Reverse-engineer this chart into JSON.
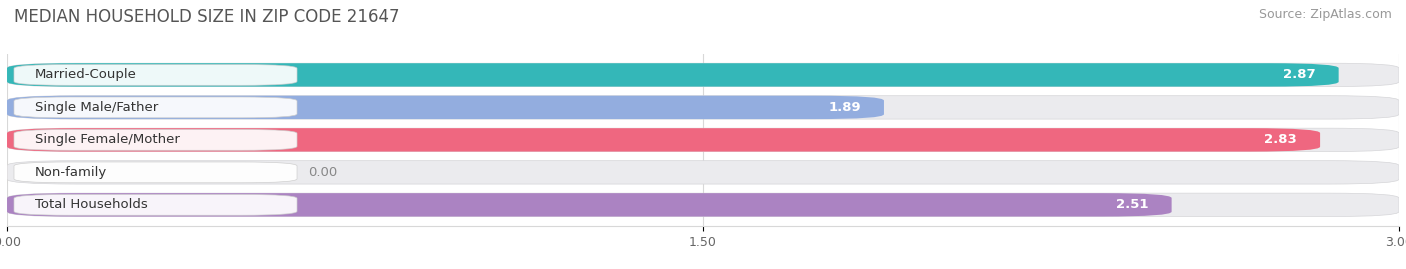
{
  "title": "MEDIAN HOUSEHOLD SIZE IN ZIP CODE 21647",
  "source": "Source: ZipAtlas.com",
  "categories": [
    "Married-Couple",
    "Single Male/Father",
    "Single Female/Mother",
    "Non-family",
    "Total Households"
  ],
  "values": [
    2.87,
    1.89,
    2.83,
    0.0,
    2.51
  ],
  "bar_colors": [
    "#2ab5b5",
    "#8eaadf",
    "#f0607a",
    "#f5c08a",
    "#a87ec0"
  ],
  "bar_bg_color": "#ebebee",
  "xlim": [
    0,
    3.0
  ],
  "xticks": [
    0.0,
    1.5,
    3.0
  ],
  "xtick_labels": [
    "0.00",
    "1.50",
    "3.00"
  ],
  "title_fontsize": 12,
  "source_fontsize": 9,
  "label_fontsize": 9.5,
  "value_fontsize": 9.5,
  "bar_height": 0.72,
  "bar_gap": 0.28,
  "background_color": "#ffffff",
  "grid_color": "#d8d8d8"
}
